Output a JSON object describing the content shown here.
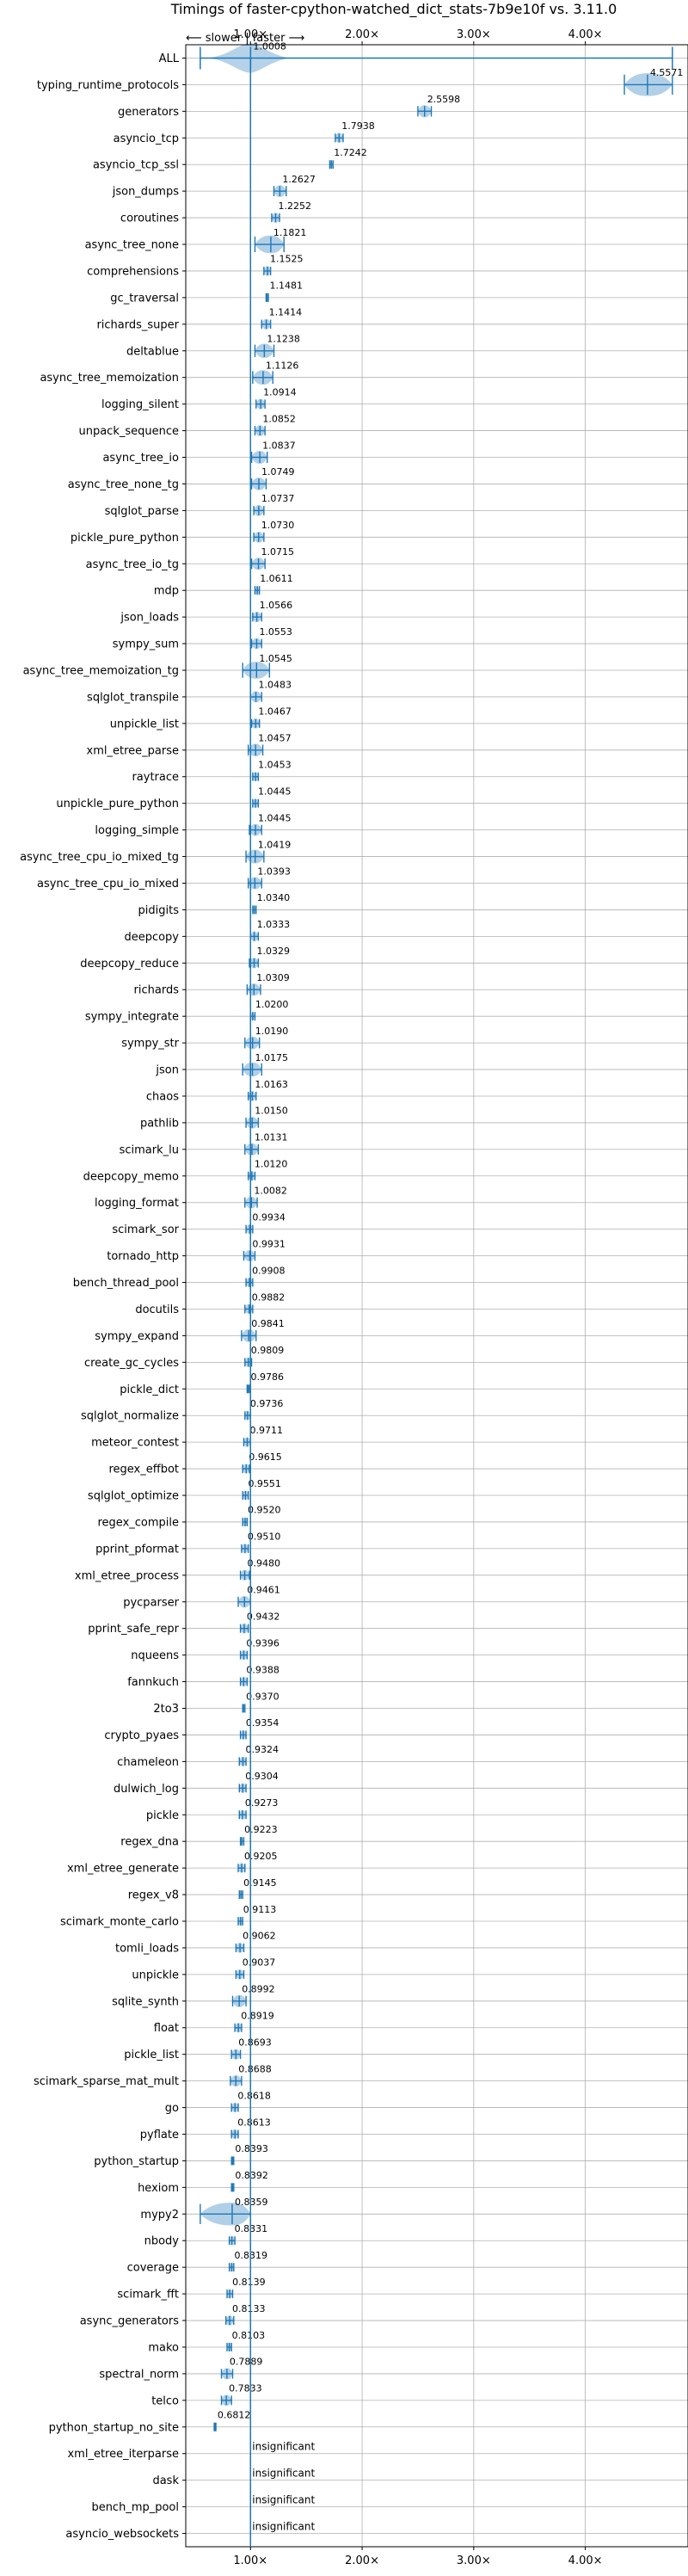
{
  "chart_data": {
    "type": "violin",
    "title": "Timings of faster-cpython-watched_dict_stats-7b9e10f vs. 3.11.0",
    "direction_label": "⟵ slower  |  faster ⟶",
    "xlim": [
      0.42,
      4.92
    ],
    "x_ticks": [
      {
        "value": 1.0,
        "label": "1.00×"
      },
      {
        "value": 2.0,
        "label": "2.00×"
      },
      {
        "value": 3.0,
        "label": "3.00×"
      },
      {
        "value": 4.0,
        "label": "4.00×"
      }
    ],
    "grid": true,
    "reference_line": 1.0,
    "insignificant_label": "insignificant",
    "benchmarks": [
      {
        "name": "ALL",
        "value": 1.0008,
        "label": "1.0008",
        "range": [
          0.55,
          4.78
        ],
        "kind": "all"
      },
      {
        "name": "typing_runtime_protocols",
        "value": 4.5571,
        "label": "4.5571",
        "range": [
          4.35,
          4.78
        ],
        "kind": "sig"
      },
      {
        "name": "generators",
        "value": 2.5598,
        "label": "2.5598",
        "range": [
          2.5,
          2.62
        ],
        "kind": "sig"
      },
      {
        "name": "asyncio_tcp",
        "value": 1.7938,
        "label": "1.7938",
        "range": [
          1.76,
          1.83
        ],
        "kind": "sig"
      },
      {
        "name": "asyncio_tcp_ssl",
        "value": 1.7242,
        "label": "1.7242",
        "range": [
          1.71,
          1.74
        ],
        "kind": "sig"
      },
      {
        "name": "json_dumps",
        "value": 1.2627,
        "label": "1.2627",
        "range": [
          1.21,
          1.32
        ],
        "kind": "sig"
      },
      {
        "name": "coroutines",
        "value": 1.2252,
        "label": "1.2252",
        "range": [
          1.19,
          1.26
        ],
        "kind": "sig"
      },
      {
        "name": "async_tree_none",
        "value": 1.1821,
        "label": "1.1821",
        "range": [
          1.04,
          1.3
        ],
        "kind": "sig"
      },
      {
        "name": "comprehensions",
        "value": 1.1525,
        "label": "1.1525",
        "range": [
          1.12,
          1.18
        ],
        "kind": "sig"
      },
      {
        "name": "gc_traversal",
        "value": 1.1481,
        "label": "1.1481",
        "range": [
          1.14,
          1.16
        ],
        "kind": "sig"
      },
      {
        "name": "richards_super",
        "value": 1.1414,
        "label": "1.1414",
        "range": [
          1.1,
          1.18
        ],
        "kind": "sig"
      },
      {
        "name": "deltablue",
        "value": 1.1238,
        "label": "1.1238",
        "range": [
          1.04,
          1.21
        ],
        "kind": "sig"
      },
      {
        "name": "async_tree_memoization",
        "value": 1.1126,
        "label": "1.1126",
        "range": [
          1.02,
          1.2
        ],
        "kind": "sig"
      },
      {
        "name": "logging_silent",
        "value": 1.0914,
        "label": "1.0914",
        "range": [
          1.05,
          1.13
        ],
        "kind": "sig"
      },
      {
        "name": "unpack_sequence",
        "value": 1.0852,
        "label": "1.0852",
        "range": [
          1.04,
          1.13
        ],
        "kind": "sig"
      },
      {
        "name": "async_tree_io",
        "value": 1.0837,
        "label": "1.0837",
        "range": [
          1.01,
          1.15
        ],
        "kind": "sig"
      },
      {
        "name": "async_tree_none_tg",
        "value": 1.0749,
        "label": "1.0749",
        "range": [
          1.01,
          1.14
        ],
        "kind": "sig"
      },
      {
        "name": "sqlglot_parse",
        "value": 1.0737,
        "label": "1.0737",
        "range": [
          1.03,
          1.12
        ],
        "kind": "sig"
      },
      {
        "name": "pickle_pure_python",
        "value": 1.073,
        "label": "1.0730",
        "range": [
          1.03,
          1.12
        ],
        "kind": "sig"
      },
      {
        "name": "async_tree_io_tg",
        "value": 1.0715,
        "label": "1.0715",
        "range": [
          1.01,
          1.13
        ],
        "kind": "sig"
      },
      {
        "name": "mdp",
        "value": 1.0611,
        "label": "1.0611",
        "range": [
          1.04,
          1.08
        ],
        "kind": "sig"
      },
      {
        "name": "json_loads",
        "value": 1.0566,
        "label": "1.0566",
        "range": [
          1.02,
          1.1
        ],
        "kind": "sig"
      },
      {
        "name": "sympy_sum",
        "value": 1.0553,
        "label": "1.0553",
        "range": [
          1.01,
          1.1
        ],
        "kind": "sig"
      },
      {
        "name": "async_tree_memoization_tg",
        "value": 1.0545,
        "label": "1.0545",
        "range": [
          0.93,
          1.17
        ],
        "kind": "sig"
      },
      {
        "name": "sqlglot_transpile",
        "value": 1.0483,
        "label": "1.0483",
        "range": [
          1.0,
          1.1
        ],
        "kind": "sig"
      },
      {
        "name": "unpickle_list",
        "value": 1.0467,
        "label": "1.0467",
        "range": [
          1.01,
          1.08
        ],
        "kind": "sig"
      },
      {
        "name": "xml_etree_parse",
        "value": 1.0457,
        "label": "1.0457",
        "range": [
          0.98,
          1.11
        ],
        "kind": "sig"
      },
      {
        "name": "raytrace",
        "value": 1.0453,
        "label": "1.0453",
        "range": [
          1.02,
          1.07
        ],
        "kind": "sig"
      },
      {
        "name": "unpickle_pure_python",
        "value": 1.0445,
        "label": "1.0445",
        "range": [
          1.02,
          1.07
        ],
        "kind": "sig"
      },
      {
        "name": "logging_simple",
        "value": 1.0445,
        "label": "1.0445",
        "range": [
          0.99,
          1.1
        ],
        "kind": "sig"
      },
      {
        "name": "async_tree_cpu_io_mixed_tg",
        "value": 1.0419,
        "label": "1.0419",
        "range": [
          0.96,
          1.12
        ],
        "kind": "sig"
      },
      {
        "name": "async_tree_cpu_io_mixed",
        "value": 1.0393,
        "label": "1.0393",
        "range": [
          0.98,
          1.1
        ],
        "kind": "sig"
      },
      {
        "name": "pidigits",
        "value": 1.034,
        "label": "1.0340",
        "range": [
          1.02,
          1.05
        ],
        "kind": "sig"
      },
      {
        "name": "deepcopy",
        "value": 1.0333,
        "label": "1.0333",
        "range": [
          1.0,
          1.07
        ],
        "kind": "sig"
      },
      {
        "name": "deepcopy_reduce",
        "value": 1.0329,
        "label": "1.0329",
        "range": [
          0.99,
          1.07
        ],
        "kind": "sig"
      },
      {
        "name": "richards",
        "value": 1.0309,
        "label": "1.0309",
        "range": [
          0.97,
          1.09
        ],
        "kind": "sig"
      },
      {
        "name": "sympy_integrate",
        "value": 1.02,
        "label": "1.0200",
        "range": [
          1.0,
          1.04
        ],
        "kind": "sig"
      },
      {
        "name": "sympy_str",
        "value": 1.019,
        "label": "1.0190",
        "range": [
          0.95,
          1.08
        ],
        "kind": "sig"
      },
      {
        "name": "json",
        "value": 1.0175,
        "label": "1.0175",
        "range": [
          0.93,
          1.1
        ],
        "kind": "sig"
      },
      {
        "name": "chaos",
        "value": 1.0163,
        "label": "1.0163",
        "range": [
          0.98,
          1.05
        ],
        "kind": "sig"
      },
      {
        "name": "pathlib",
        "value": 1.015,
        "label": "1.0150",
        "range": [
          0.96,
          1.07
        ],
        "kind": "sig"
      },
      {
        "name": "scimark_lu",
        "value": 1.0131,
        "label": "1.0131",
        "range": [
          0.95,
          1.07
        ],
        "kind": "sig"
      },
      {
        "name": "deepcopy_memo",
        "value": 1.012,
        "label": "1.0120",
        "range": [
          0.98,
          1.04
        ],
        "kind": "sig"
      },
      {
        "name": "logging_format",
        "value": 1.0082,
        "label": "1.0082",
        "range": [
          0.95,
          1.06
        ],
        "kind": "sig"
      },
      {
        "name": "scimark_sor",
        "value": 0.9934,
        "label": "0.9934",
        "range": [
          0.96,
          1.02
        ],
        "kind": "sig"
      },
      {
        "name": "tornado_http",
        "value": 0.9931,
        "label": "0.9931",
        "range": [
          0.94,
          1.04
        ],
        "kind": "sig"
      },
      {
        "name": "bench_thread_pool",
        "value": 0.9908,
        "label": "0.9908",
        "range": [
          0.96,
          1.02
        ],
        "kind": "sig"
      },
      {
        "name": "docutils",
        "value": 0.9882,
        "label": "0.9882",
        "range": [
          0.95,
          1.02
        ],
        "kind": "sig"
      },
      {
        "name": "sympy_expand",
        "value": 0.9841,
        "label": "0.9841",
        "range": [
          0.92,
          1.05
        ],
        "kind": "sig"
      },
      {
        "name": "create_gc_cycles",
        "value": 0.9809,
        "label": "0.9809",
        "range": [
          0.95,
          1.01
        ],
        "kind": "sig"
      },
      {
        "name": "pickle_dict",
        "value": 0.9786,
        "label": "0.9786",
        "range": [
          0.97,
          0.99
        ],
        "kind": "sig"
      },
      {
        "name": "sqlglot_normalize",
        "value": 0.9736,
        "label": "0.9736",
        "range": [
          0.95,
          1.0
        ],
        "kind": "sig"
      },
      {
        "name": "meteor_contest",
        "value": 0.9711,
        "label": "0.9711",
        "range": [
          0.94,
          1.0
        ],
        "kind": "sig"
      },
      {
        "name": "regex_effbot",
        "value": 0.9615,
        "label": "0.9615",
        "range": [
          0.93,
          0.99
        ],
        "kind": "sig"
      },
      {
        "name": "sqlglot_optimize",
        "value": 0.9551,
        "label": "0.9551",
        "range": [
          0.93,
          0.98
        ],
        "kind": "sig"
      },
      {
        "name": "regex_compile",
        "value": 0.952,
        "label": "0.9520",
        "range": [
          0.93,
          0.97
        ],
        "kind": "sig"
      },
      {
        "name": "pprint_pformat",
        "value": 0.951,
        "label": "0.9510",
        "range": [
          0.92,
          0.98
        ],
        "kind": "sig"
      },
      {
        "name": "xml_etree_process",
        "value": 0.948,
        "label": "0.9480",
        "range": [
          0.91,
          0.99
        ],
        "kind": "sig"
      },
      {
        "name": "pycparser",
        "value": 0.9461,
        "label": "0.9461",
        "range": [
          0.89,
          1.0
        ],
        "kind": "sig"
      },
      {
        "name": "pprint_safe_repr",
        "value": 0.9432,
        "label": "0.9432",
        "range": [
          0.91,
          0.98
        ],
        "kind": "sig"
      },
      {
        "name": "nqueens",
        "value": 0.9396,
        "label": "0.9396",
        "range": [
          0.91,
          0.97
        ],
        "kind": "sig"
      },
      {
        "name": "fannkuch",
        "value": 0.9388,
        "label": "0.9388",
        "range": [
          0.91,
          0.97
        ],
        "kind": "sig"
      },
      {
        "name": "2to3",
        "value": 0.937,
        "label": "0.9370",
        "range": [
          0.93,
          0.95
        ],
        "kind": "sig"
      },
      {
        "name": "crypto_pyaes",
        "value": 0.9354,
        "label": "0.9354",
        "range": [
          0.91,
          0.96
        ],
        "kind": "sig"
      },
      {
        "name": "chameleon",
        "value": 0.9324,
        "label": "0.9324",
        "range": [
          0.9,
          0.96
        ],
        "kind": "sig"
      },
      {
        "name": "dulwich_log",
        "value": 0.9304,
        "label": "0.9304",
        "range": [
          0.9,
          0.96
        ],
        "kind": "sig"
      },
      {
        "name": "pickle",
        "value": 0.9273,
        "label": "0.9273",
        "range": [
          0.9,
          0.96
        ],
        "kind": "sig"
      },
      {
        "name": "regex_dna",
        "value": 0.9223,
        "label": "0.9223",
        "range": [
          0.91,
          0.94
        ],
        "kind": "sig"
      },
      {
        "name": "xml_etree_generate",
        "value": 0.9205,
        "label": "0.9205",
        "range": [
          0.89,
          0.95
        ],
        "kind": "sig"
      },
      {
        "name": "regex_v8",
        "value": 0.9145,
        "label": "0.9145",
        "range": [
          0.9,
          0.93
        ],
        "kind": "sig"
      },
      {
        "name": "scimark_monte_carlo",
        "value": 0.9113,
        "label": "0.9113",
        "range": [
          0.89,
          0.93
        ],
        "kind": "sig"
      },
      {
        "name": "tomli_loads",
        "value": 0.9062,
        "label": "0.9062",
        "range": [
          0.87,
          0.94
        ],
        "kind": "sig"
      },
      {
        "name": "unpickle",
        "value": 0.9037,
        "label": "0.9037",
        "range": [
          0.87,
          0.94
        ],
        "kind": "sig"
      },
      {
        "name": "sqlite_synth",
        "value": 0.8992,
        "label": "0.8992",
        "range": [
          0.84,
          0.96
        ],
        "kind": "sig"
      },
      {
        "name": "float",
        "value": 0.8919,
        "label": "0.8919",
        "range": [
          0.86,
          0.92
        ],
        "kind": "sig"
      },
      {
        "name": "pickle_list",
        "value": 0.8693,
        "label": "0.8693",
        "range": [
          0.83,
          0.91
        ],
        "kind": "sig"
      },
      {
        "name": "scimark_sparse_mat_mult",
        "value": 0.8688,
        "label": "0.8688",
        "range": [
          0.82,
          0.92
        ],
        "kind": "sig"
      },
      {
        "name": "go",
        "value": 0.8618,
        "label": "0.8618",
        "range": [
          0.83,
          0.89
        ],
        "kind": "sig"
      },
      {
        "name": "pyflate",
        "value": 0.8613,
        "label": "0.8613",
        "range": [
          0.83,
          0.89
        ],
        "kind": "sig"
      },
      {
        "name": "python_startup",
        "value": 0.8393,
        "label": "0.8393",
        "range": [
          0.83,
          0.85
        ],
        "kind": "sig"
      },
      {
        "name": "hexiom",
        "value": 0.8392,
        "label": "0.8392",
        "range": [
          0.83,
          0.85
        ],
        "kind": "sig"
      },
      {
        "name": "mypy2",
        "value": 0.8359,
        "label": "0.8359",
        "range": [
          0.55,
          1.0
        ],
        "kind": "sig"
      },
      {
        "name": "nbody",
        "value": 0.8331,
        "label": "0.8331",
        "range": [
          0.81,
          0.86
        ],
        "kind": "sig"
      },
      {
        "name": "coverage",
        "value": 0.8319,
        "label": "0.8319",
        "range": [
          0.81,
          0.85
        ],
        "kind": "sig"
      },
      {
        "name": "scimark_fft",
        "value": 0.8139,
        "label": "0.8139",
        "range": [
          0.79,
          0.84
        ],
        "kind": "sig"
      },
      {
        "name": "async_generators",
        "value": 0.8133,
        "label": "0.8133",
        "range": [
          0.78,
          0.85
        ],
        "kind": "sig"
      },
      {
        "name": "mako",
        "value": 0.8103,
        "label": "0.8103",
        "range": [
          0.79,
          0.83
        ],
        "kind": "sig"
      },
      {
        "name": "spectral_norm",
        "value": 0.7889,
        "label": "0.7889",
        "range": [
          0.74,
          0.84
        ],
        "kind": "sig"
      },
      {
        "name": "telco",
        "value": 0.7833,
        "label": "0.7833",
        "range": [
          0.74,
          0.83
        ],
        "kind": "sig"
      },
      {
        "name": "python_startup_no_site",
        "value": 0.6812,
        "label": "0.6812",
        "range": [
          0.675,
          0.69
        ],
        "kind": "sig"
      },
      {
        "name": "xml_etree_iterparse",
        "value": null,
        "label": "",
        "range": null,
        "kind": "insig"
      },
      {
        "name": "dask",
        "value": null,
        "label": "",
        "range": null,
        "kind": "insig"
      },
      {
        "name": "bench_mp_pool",
        "value": null,
        "label": "",
        "range": null,
        "kind": "insig"
      },
      {
        "name": "asyncio_websockets",
        "value": null,
        "label": "",
        "range": null,
        "kind": "insig"
      }
    ]
  },
  "colors": {
    "violin_fill": "#a9cbe6",
    "violin_edge": "#1f77b4",
    "grid": "#b0b0b0",
    "reference_line": "#1f77b4",
    "axis": "#000000",
    "text": "#000000",
    "median_marker": "#d62728"
  }
}
